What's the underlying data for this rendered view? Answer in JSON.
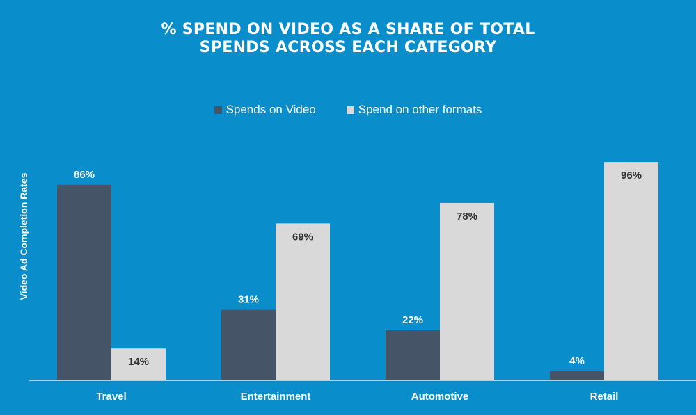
{
  "colors": {
    "background": "#0a8ecb",
    "series_video": "#465468",
    "series_other": "#d9d9d9",
    "axis": "#ffffff"
  },
  "chart_data": {
    "type": "bar",
    "title_lines": [
      "% SPEND ON VIDEO AS A SHARE OF TOTAL",
      "SPENDS ACROSS EACH CATEGORY"
    ],
    "ylabel": "Video Ad Completion Rates",
    "xlabel": "",
    "categories": [
      "Travel",
      "Entertainment",
      "Automotive",
      "Retail"
    ],
    "series": [
      {
        "name": "Spends on Video",
        "values": [
          86,
          31,
          22,
          4
        ],
        "labels": [
          "86%",
          "31%",
          "22%",
          "4%"
        ]
      },
      {
        "name": "Spend on other formats",
        "values": [
          14,
          69,
          78,
          96
        ],
        "labels": [
          "14%",
          "69%",
          "78%",
          "96%"
        ]
      }
    ],
    "ylim": [
      0,
      100
    ],
    "grid": false,
    "legend_position": "top-center"
  }
}
